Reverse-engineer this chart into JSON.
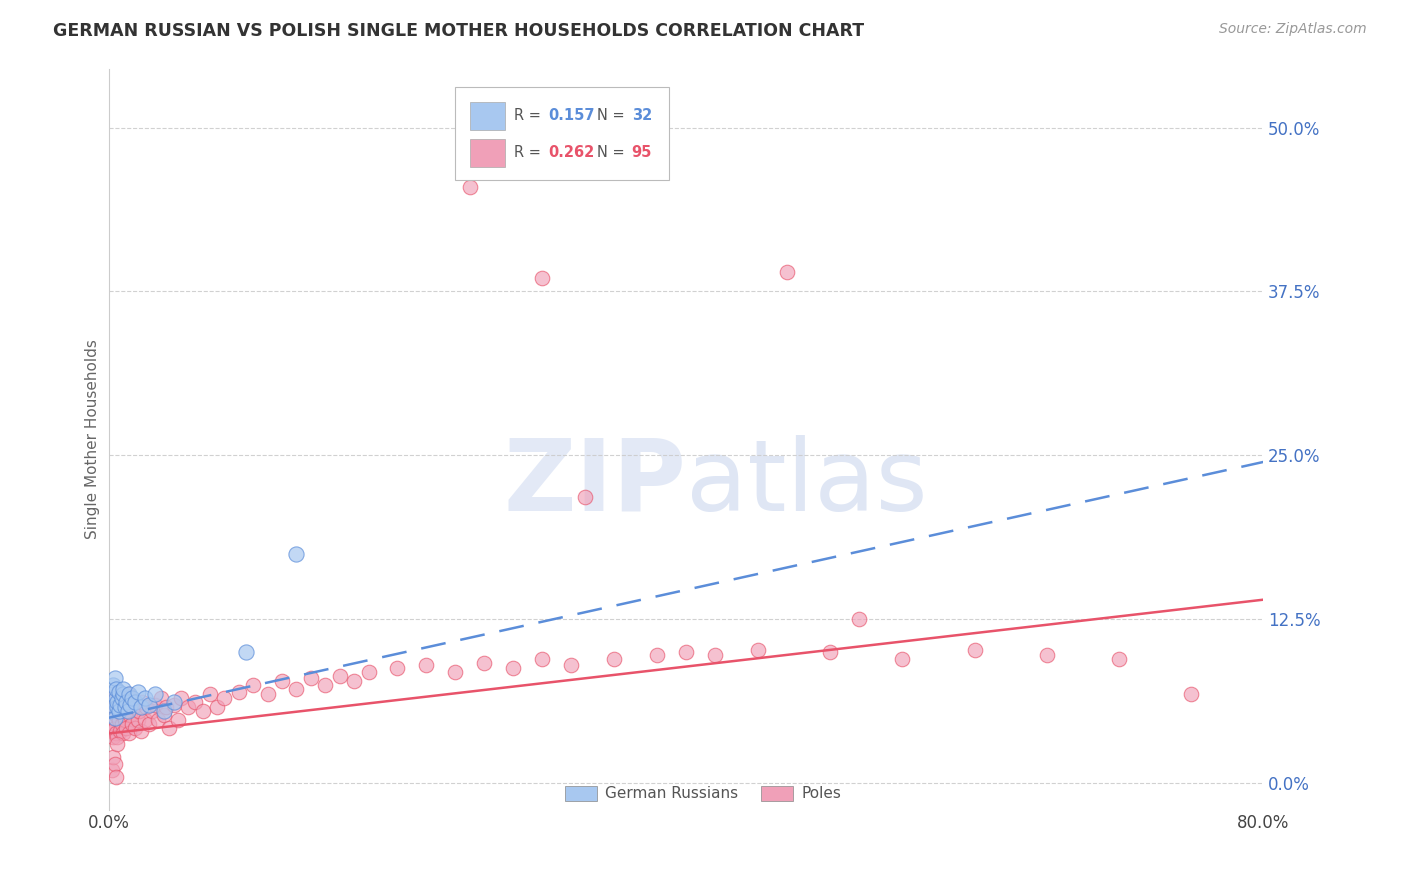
{
  "title": "GERMAN RUSSIAN VS POLISH SINGLE MOTHER HOUSEHOLDS CORRELATION CHART",
  "source": "Source: ZipAtlas.com",
  "ylabel": "Single Mother Households",
  "ytick_labels": [
    "0.0%",
    "12.5%",
    "25.0%",
    "37.5%",
    "50.0%"
  ],
  "ytick_values": [
    0.0,
    0.125,
    0.25,
    0.375,
    0.5
  ],
  "xlim": [
    0.0,
    0.8
  ],
  "ylim": [
    -0.02,
    0.545
  ],
  "blue_color": "#a8c8f0",
  "pink_color": "#f0a0b8",
  "blue_line_color": "#5b8dd9",
  "pink_line_color": "#e8536a",
  "axis_color": "#4472c4",
  "text_color": "#333333",
  "grid_color": "#cccccc",
  "background_color": "#ffffff",
  "blue_line_start_y": 0.05,
  "blue_line_end_y": 0.245,
  "pink_line_start_y": 0.038,
  "pink_line_end_y": 0.14,
  "gr_x": [
    0.001,
    0.002,
    0.003,
    0.003,
    0.004,
    0.004,
    0.005,
    0.005,
    0.006,
    0.006,
    0.007,
    0.007,
    0.008,
    0.009,
    0.01,
    0.01,
    0.011,
    0.012,
    0.013,
    0.014,
    0.015,
    0.016,
    0.018,
    0.02,
    0.022,
    0.025,
    0.028,
    0.032,
    0.038,
    0.045,
    0.095,
    0.13
  ],
  "gr_y": [
    0.055,
    0.06,
    0.068,
    0.075,
    0.05,
    0.08,
    0.065,
    0.072,
    0.058,
    0.062,
    0.055,
    0.07,
    0.06,
    0.065,
    0.068,
    0.072,
    0.058,
    0.062,
    0.055,
    0.068,
    0.06,
    0.065,
    0.062,
    0.07,
    0.058,
    0.065,
    0.06,
    0.068,
    0.055,
    0.062,
    0.1,
    0.175
  ],
  "po_x": [
    0.001,
    0.002,
    0.002,
    0.003,
    0.003,
    0.003,
    0.004,
    0.004,
    0.005,
    0.005,
    0.005,
    0.006,
    0.006,
    0.007,
    0.007,
    0.008,
    0.008,
    0.009,
    0.009,
    0.01,
    0.01,
    0.011,
    0.011,
    0.012,
    0.013,
    0.013,
    0.014,
    0.015,
    0.015,
    0.016,
    0.017,
    0.018,
    0.019,
    0.02,
    0.021,
    0.022,
    0.023,
    0.025,
    0.026,
    0.028,
    0.03,
    0.032,
    0.034,
    0.036,
    0.038,
    0.04,
    0.042,
    0.045,
    0.048,
    0.05,
    0.055,
    0.06,
    0.065,
    0.07,
    0.075,
    0.08,
    0.09,
    0.1,
    0.11,
    0.12,
    0.13,
    0.14,
    0.15,
    0.16,
    0.17,
    0.18,
    0.2,
    0.22,
    0.24,
    0.26,
    0.28,
    0.3,
    0.32,
    0.35,
    0.38,
    0.4,
    0.42,
    0.45,
    0.5,
    0.52,
    0.55,
    0.6,
    0.65,
    0.7,
    0.75,
    0.002,
    0.003,
    0.004,
    0.005,
    0.006,
    0.375,
    0.25,
    0.3,
    0.47,
    0.33
  ],
  "po_y": [
    0.045,
    0.04,
    0.055,
    0.035,
    0.05,
    0.065,
    0.042,
    0.058,
    0.038,
    0.052,
    0.068,
    0.035,
    0.062,
    0.048,
    0.055,
    0.04,
    0.06,
    0.045,
    0.058,
    0.038,
    0.052,
    0.048,
    0.062,
    0.042,
    0.055,
    0.068,
    0.038,
    0.052,
    0.065,
    0.045,
    0.058,
    0.042,
    0.06,
    0.048,
    0.055,
    0.04,
    0.062,
    0.048,
    0.058,
    0.045,
    0.055,
    0.06,
    0.048,
    0.065,
    0.052,
    0.058,
    0.042,
    0.06,
    0.048,
    0.065,
    0.058,
    0.062,
    0.055,
    0.068,
    0.058,
    0.065,
    0.07,
    0.075,
    0.068,
    0.078,
    0.072,
    0.08,
    0.075,
    0.082,
    0.078,
    0.085,
    0.088,
    0.09,
    0.085,
    0.092,
    0.088,
    0.095,
    0.09,
    0.095,
    0.098,
    0.1,
    0.098,
    0.102,
    0.1,
    0.125,
    0.095,
    0.102,
    0.098,
    0.095,
    0.068,
    0.01,
    0.02,
    0.015,
    0.005,
    0.03,
    0.47,
    0.455,
    0.385,
    0.39,
    0.218
  ]
}
